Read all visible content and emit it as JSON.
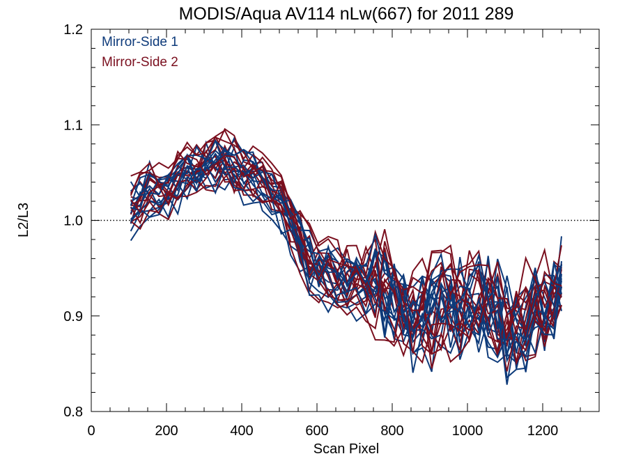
{
  "chart_data": {
    "type": "line",
    "title": "MODIS/Aqua AV114 nLw(667) for 2011 289",
    "xlabel": "Scan Pixel",
    "ylabel": "L2/L3",
    "xlim": [
      0,
      1350
    ],
    "ylim": [
      0.8,
      1.2
    ],
    "x_ticks": [
      "0",
      "200",
      "400",
      "600",
      "800",
      "1000",
      "1200"
    ],
    "y_ticks": [
      "0.8",
      "0.9",
      "1.0",
      "1.1",
      "1.2"
    ],
    "reference_line": {
      "y": 1.0,
      "style": "dotted"
    },
    "legend_placement": "top-left",
    "x": [
      105,
      130,
      155,
      180,
      205,
      230,
      255,
      280,
      305,
      330,
      355,
      380,
      405,
      430,
      455,
      480,
      505,
      530,
      555,
      580,
      605,
      630,
      655,
      680,
      705,
      730,
      755,
      780,
      805,
      830,
      855,
      880,
      905,
      930,
      955,
      980,
      1005,
      1030,
      1055,
      1080,
      1105,
      1130,
      1155,
      1180,
      1205,
      1230,
      1250
    ],
    "mean_profile": [
      1.01,
      1.02,
      1.03,
      1.03,
      1.03,
      1.04,
      1.05,
      1.05,
      1.06,
      1.06,
      1.06,
      1.055,
      1.05,
      1.05,
      1.04,
      1.03,
      1.02,
      1.0,
      0.98,
      0.96,
      0.95,
      0.945,
      0.94,
      0.935,
      0.935,
      0.935,
      0.935,
      0.93,
      0.92,
      0.91,
      0.905,
      0.905,
      0.905,
      0.91,
      0.91,
      0.91,
      0.915,
      0.915,
      0.91,
      0.9,
      0.89,
      0.89,
      0.9,
      0.905,
      0.91,
      0.92,
      0.93
    ],
    "series": [
      {
        "name": "Mirror-Side 1",
        "color": "#0d3a7a",
        "line_count": 14
      },
      {
        "name": "Mirror-Side 2",
        "color": "#7a0f1e",
        "line_count": 14
      }
    ]
  }
}
